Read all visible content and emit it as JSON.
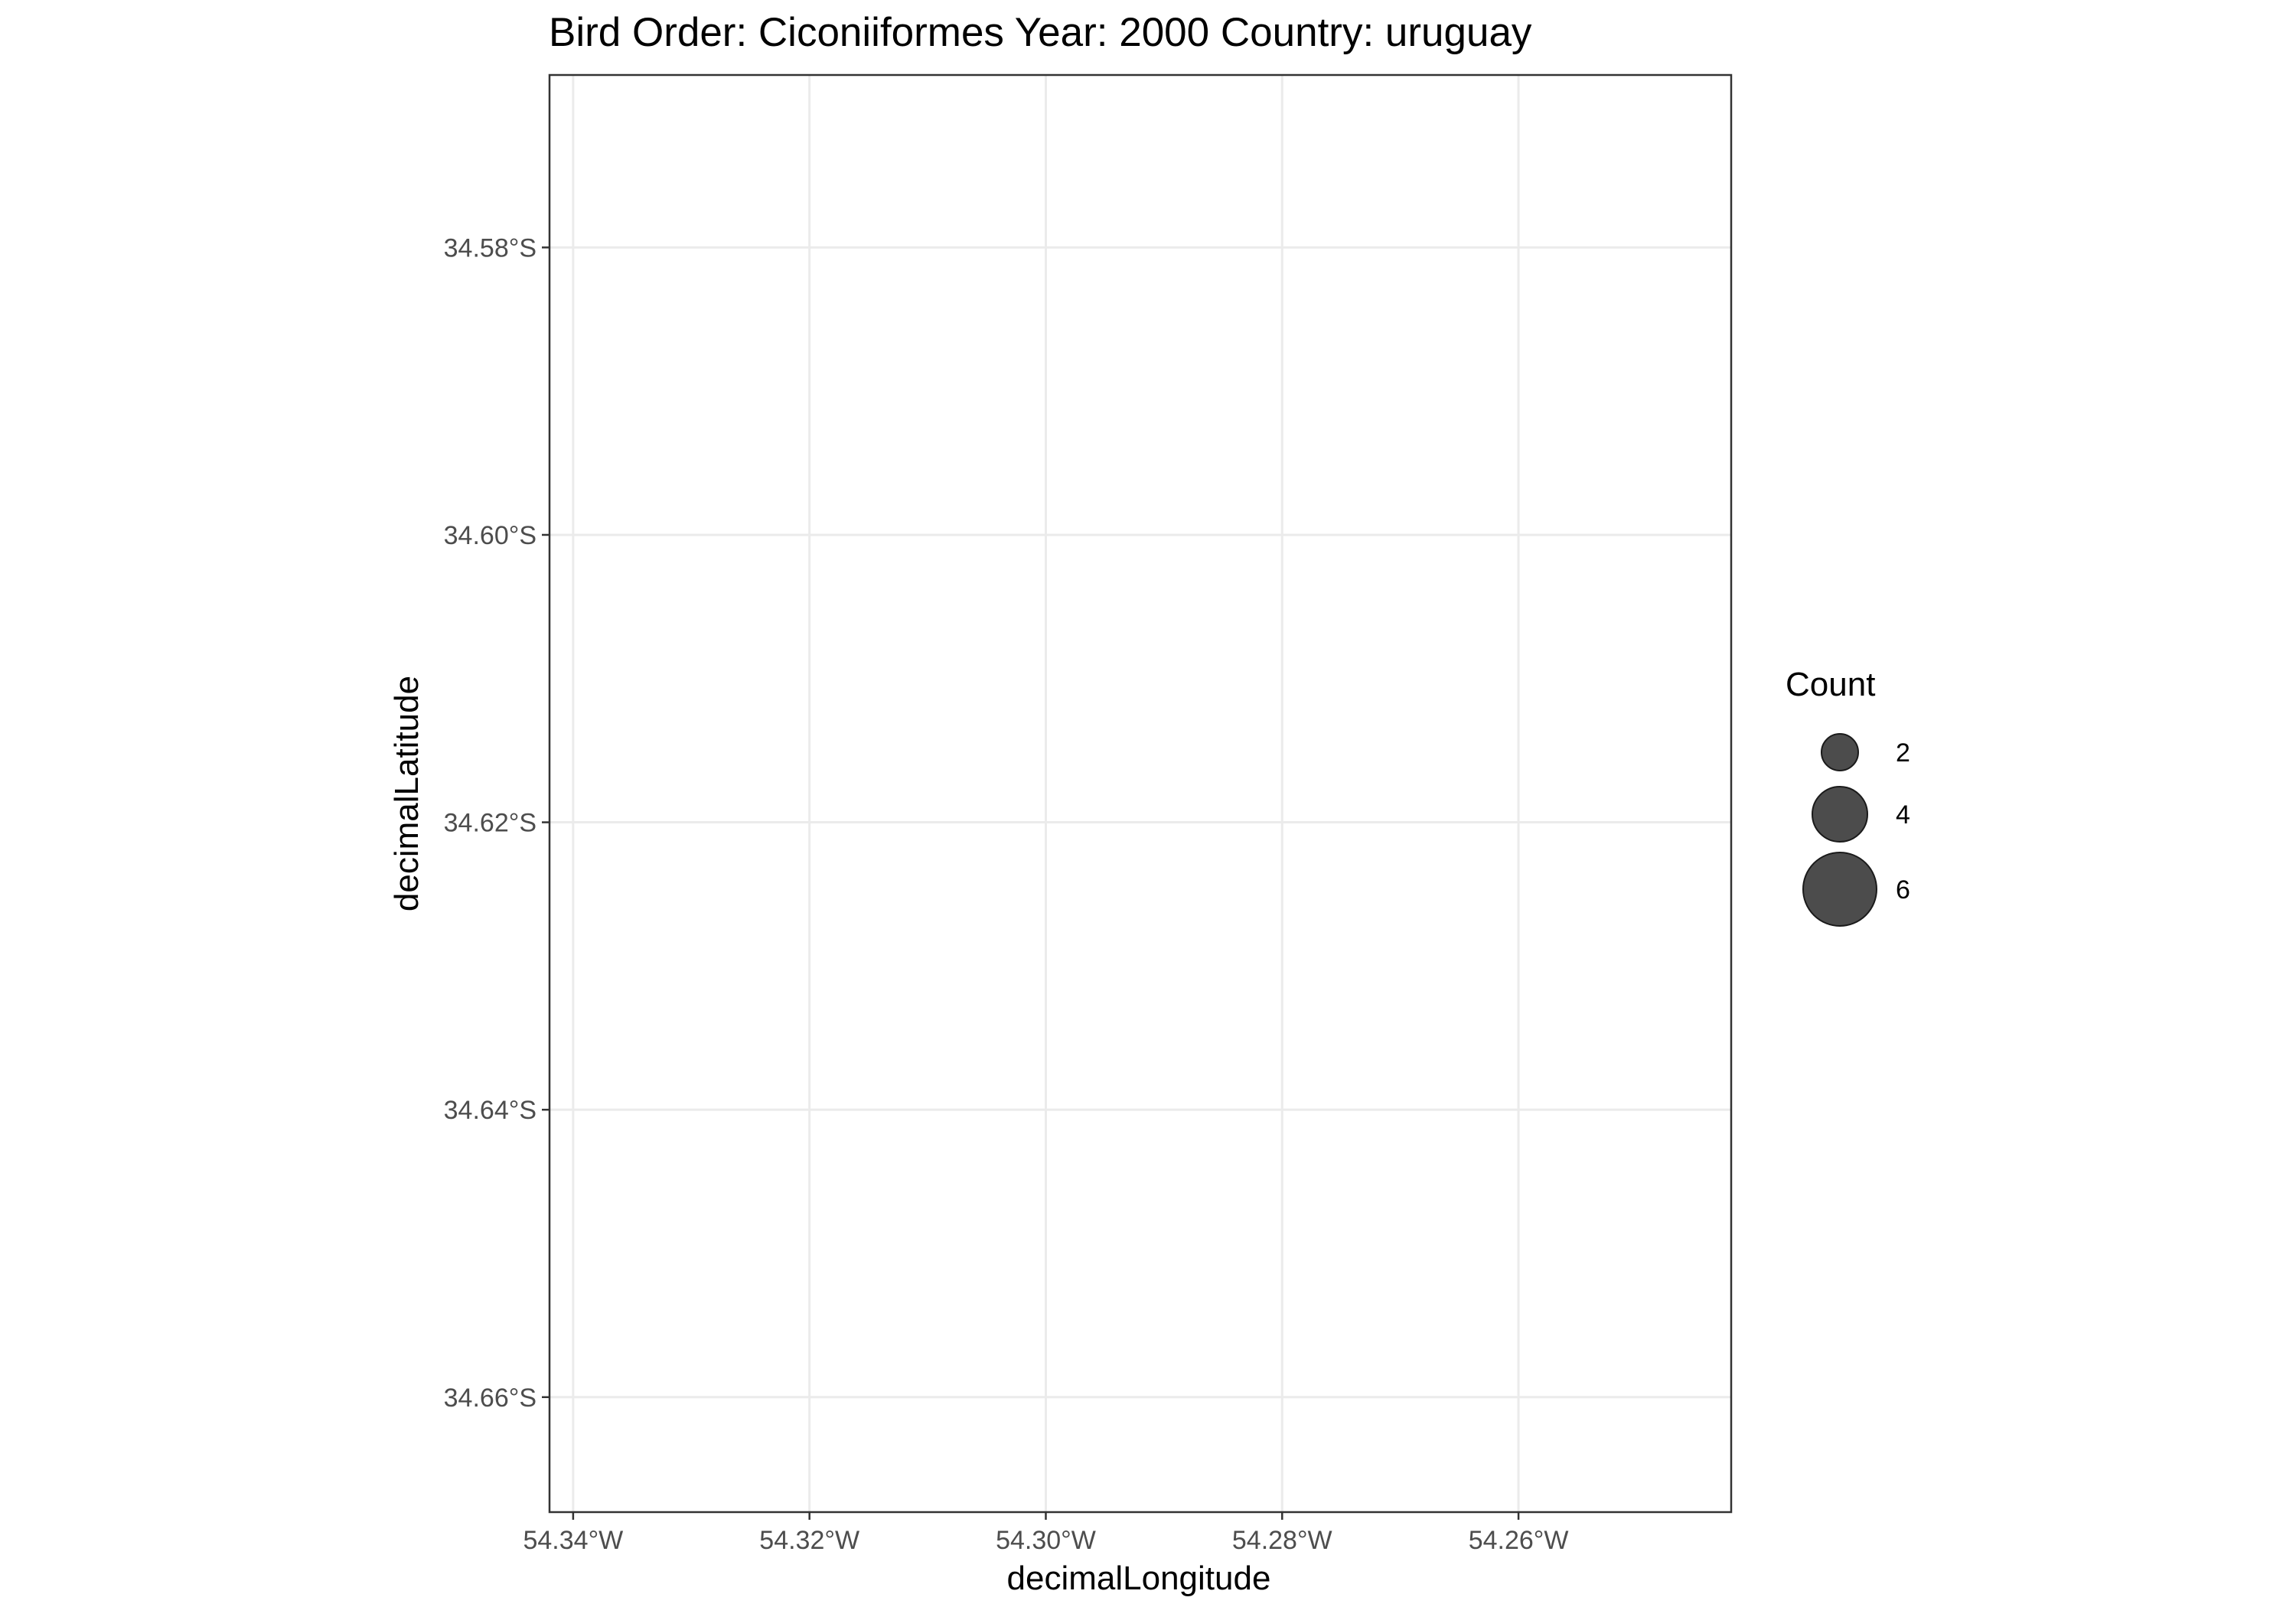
{
  "chart_data": {
    "type": "scatter",
    "title": "Bird Order: Ciconiiformes Year: 2000 Country: uruguay",
    "xlabel": "decimalLongitude",
    "ylabel": "decimalLatitude",
    "xlim": [
      -54.342,
      -54.242
    ],
    "ylim": [
      -34.668,
      -34.568
    ],
    "x_ticks": [
      {
        "value": -54.34,
        "label": "54.34°W"
      },
      {
        "value": -54.32,
        "label": "54.32°W"
      },
      {
        "value": -54.3,
        "label": "54.30°W"
      },
      {
        "value": -54.28,
        "label": "54.28°W"
      },
      {
        "value": -54.26,
        "label": "54.26°W"
      }
    ],
    "y_ticks": [
      {
        "value": -34.58,
        "label": "34.58°S"
      },
      {
        "value": -34.6,
        "label": "34.60°S"
      },
      {
        "value": -34.62,
        "label": "34.62°S"
      },
      {
        "value": -34.64,
        "label": "34.64°S"
      },
      {
        "value": -34.66,
        "label": "34.66°S"
      }
    ],
    "grid": true,
    "points": [],
    "legend": {
      "title": "Count",
      "position": "right",
      "entries": [
        {
          "value": 2,
          "label": "2"
        },
        {
          "value": 4,
          "label": "4"
        },
        {
          "value": 6,
          "label": "6"
        }
      ]
    },
    "colors": {
      "point_fill": "#333333",
      "point_stroke": "#1a1a1a",
      "grid": "#ebebeb",
      "panel_border": "#333333",
      "tick_label": "#4d4d4d"
    }
  }
}
